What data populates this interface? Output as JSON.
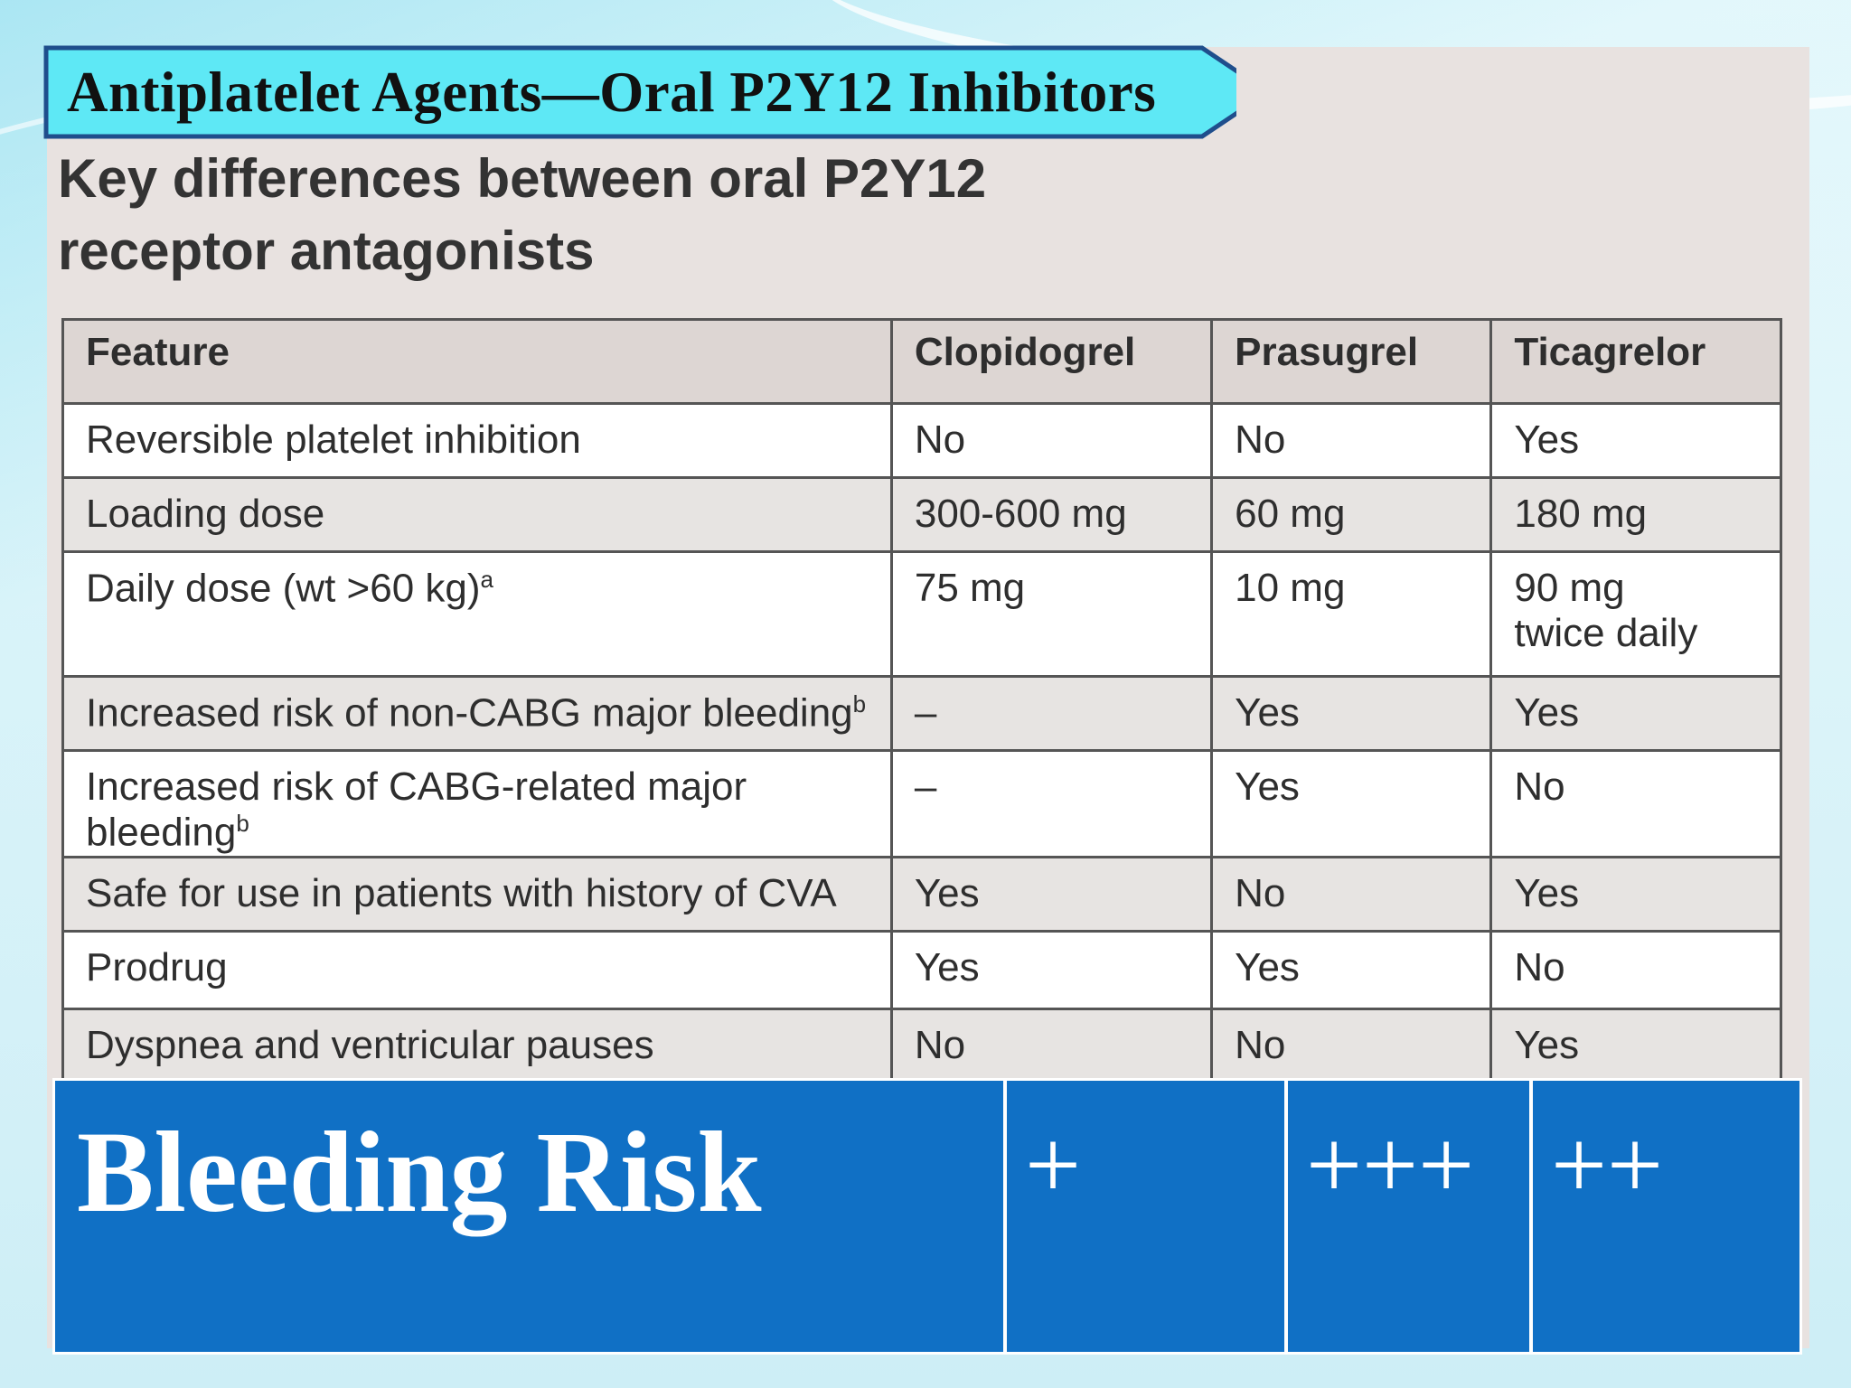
{
  "slide": {
    "title": "Antiplatelet Agents—Oral P2Y12 Inhibitors",
    "subtitle_line1": "Key differences between oral P2Y12",
    "subtitle_line2": "receptor antagonists"
  },
  "table": {
    "headers": [
      "Feature",
      "Clopidogrel",
      "Prasugrel",
      "Ticagrelor"
    ],
    "rows": [
      {
        "feature": "Reversible platelet inhibition",
        "sup": "",
        "clopidogrel": "No",
        "prasugrel": "No",
        "ticagrelor": "Yes",
        "ticagrelor2": ""
      },
      {
        "feature": "Loading dose",
        "sup": "",
        "clopidogrel": "300-600 mg",
        "prasugrel": "60 mg",
        "ticagrelor": "180 mg",
        "ticagrelor2": ""
      },
      {
        "feature": "Daily dose (wt >60 kg)",
        "sup": "a",
        "clopidogrel": "75 mg",
        "prasugrel": "10 mg",
        "ticagrelor": "90 mg",
        "ticagrelor2": "twice daily"
      },
      {
        "feature": "Increased risk of non-CABG major bleeding",
        "sup": "b",
        "clopidogrel": "–",
        "prasugrel": "Yes",
        "ticagrelor": "Yes",
        "ticagrelor2": ""
      },
      {
        "feature": "Increased risk of CABG-related major bleeding",
        "sup": "b",
        "clopidogrel": "–",
        "prasugrel": "Yes",
        "ticagrelor": "No",
        "ticagrelor2": ""
      },
      {
        "feature": "Safe for use in patients with history of CVA",
        "sup": "",
        "clopidogrel": "Yes",
        "prasugrel": "No",
        "ticagrelor": "Yes",
        "ticagrelor2": ""
      },
      {
        "feature": "Prodrug",
        "sup": "",
        "clopidogrel": "Yes",
        "prasugrel": "Yes",
        "ticagrelor": "No",
        "ticagrelor2": ""
      },
      {
        "feature": "Dyspnea and ventricular pauses",
        "sup": "",
        "clopidogrel": "No",
        "prasugrel": "No",
        "ticagrelor": "Yes",
        "ticagrelor2": ""
      }
    ]
  },
  "bleeding_risk": {
    "label": "Bleeding Risk",
    "clopidogrel": "+",
    "prasugrel": "+++",
    "ticagrelor": "++"
  },
  "colors": {
    "banner_fill": "#5ee8f5",
    "banner_border": "#1f4e8c",
    "risk_fill": "#1070c5"
  }
}
